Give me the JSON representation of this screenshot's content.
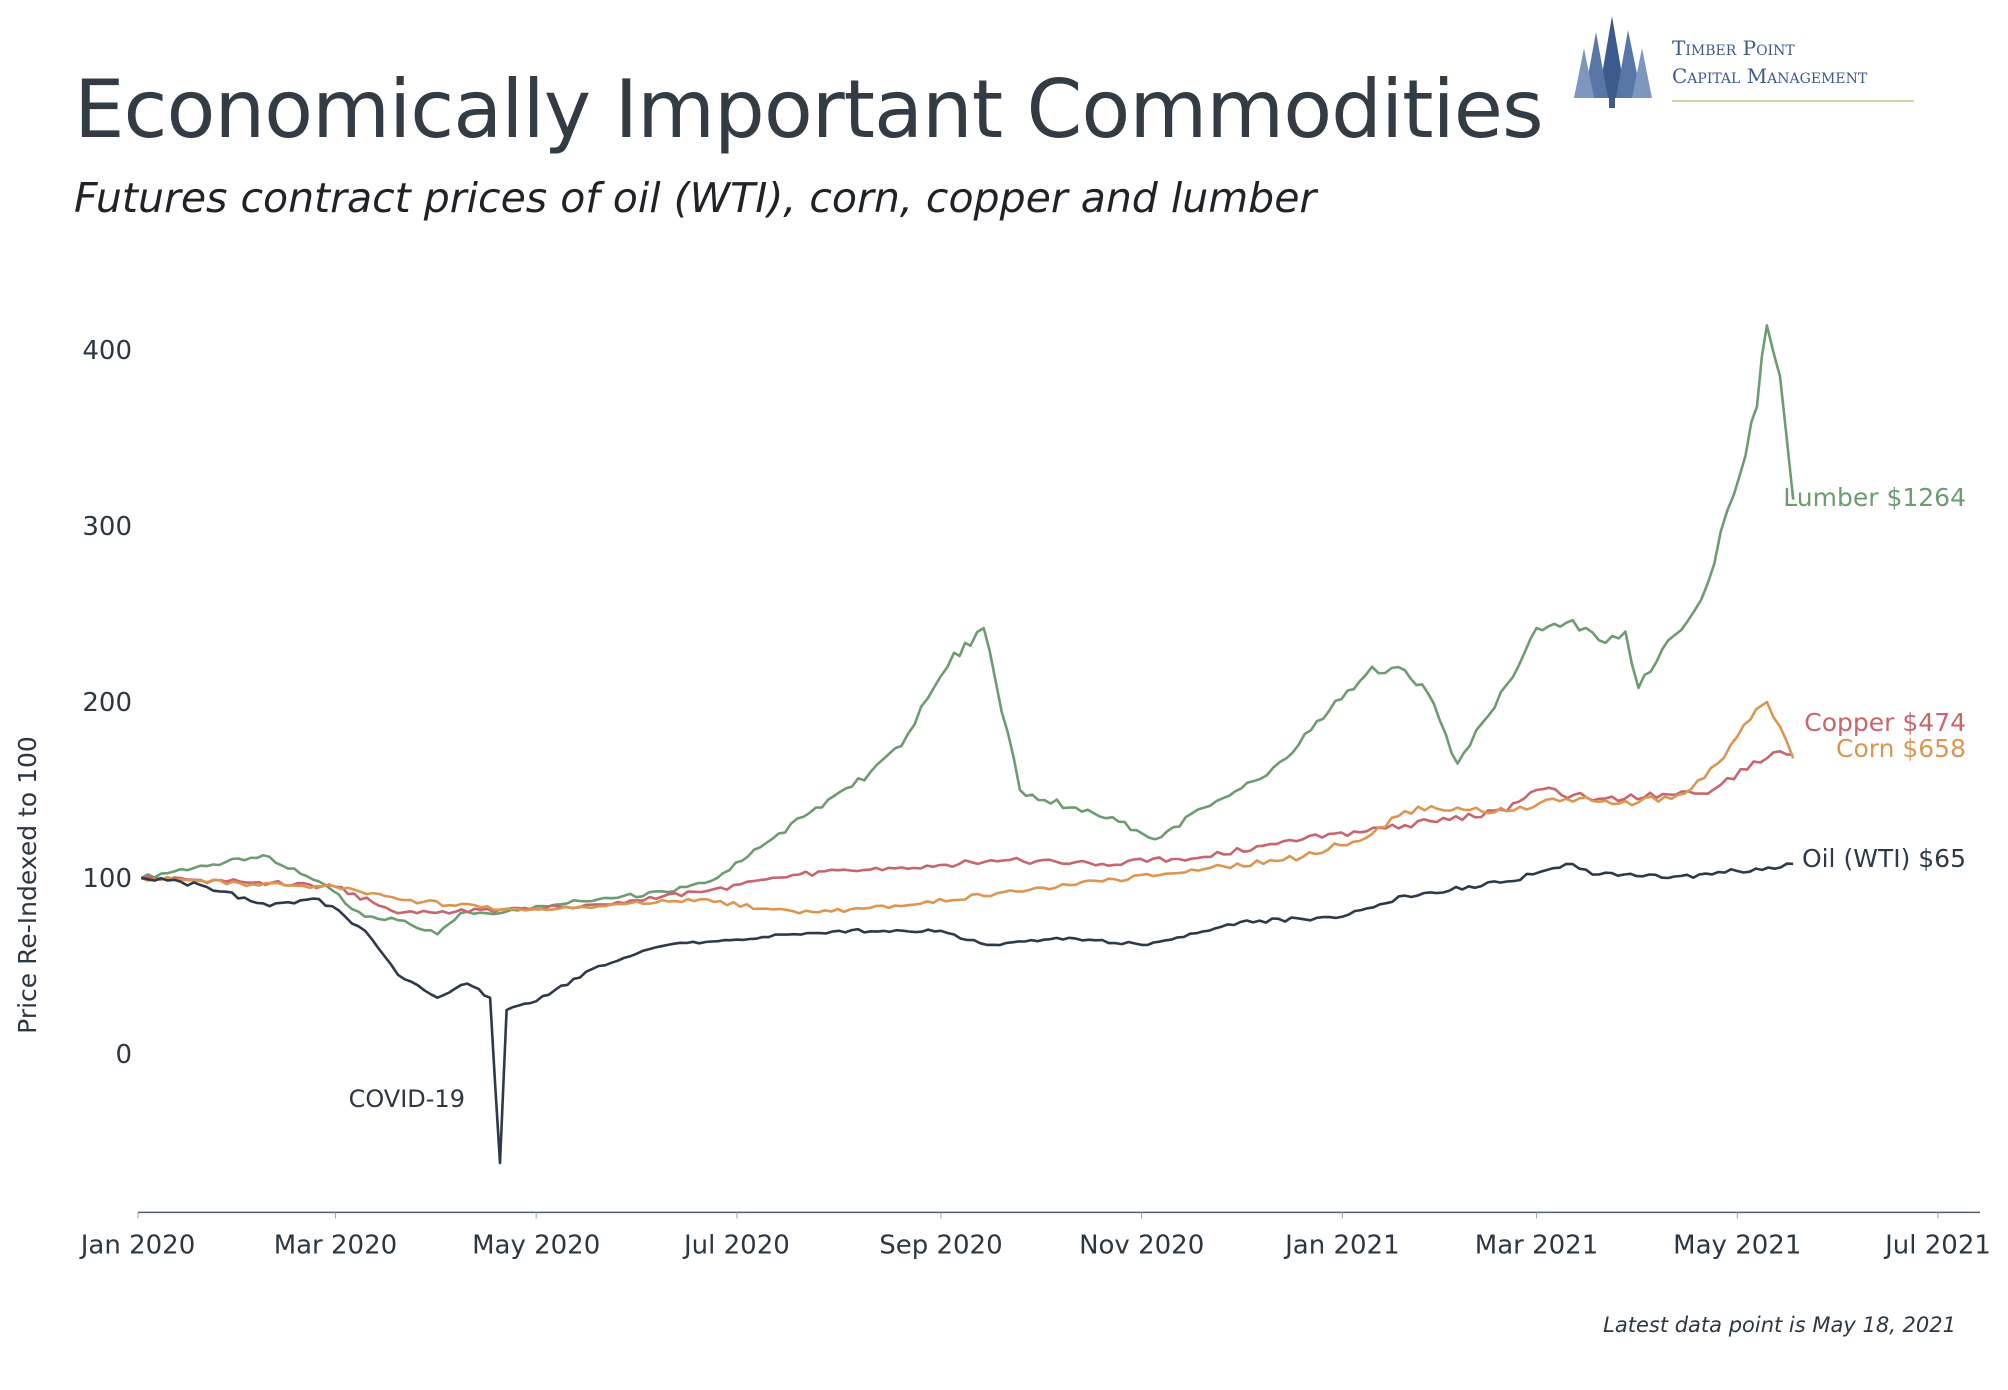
{
  "page": {
    "title": "Economically Important Commodities",
    "subtitle": "Futures contract prices of oil (WTI), corn, copper and lumber",
    "footnote": "Latest data point is May 18, 2021",
    "logo": {
      "line1": "Timber Point",
      "line2": "Capital Management",
      "color": "#3d5a8c"
    }
  },
  "chart_data": {
    "type": "line",
    "xlabel": "",
    "ylabel": "Price Re-Indexed to 100",
    "xlim": [
      "2020-01-01",
      "2021-07-01"
    ],
    "ylim": [
      -90,
      435
    ],
    "xticks": [
      {
        "date": "2020-01-01",
        "label": "Jan 2020"
      },
      {
        "date": "2020-03-01",
        "label": "Mar 2020"
      },
      {
        "date": "2020-05-01",
        "label": "May 2020"
      },
      {
        "date": "2020-07-01",
        "label": "Jul 2020"
      },
      {
        "date": "2020-09-01",
        "label": "Sep 2020"
      },
      {
        "date": "2020-11-01",
        "label": "Nov 2020"
      },
      {
        "date": "2021-01-01",
        "label": "Jan 2021"
      },
      {
        "date": "2021-03-01",
        "label": "Mar 2021"
      },
      {
        "date": "2021-05-01",
        "label": "May 2021"
      },
      {
        "date": "2021-07-01",
        "label": "Jul 2021"
      }
    ],
    "yticks": [
      0,
      100,
      200,
      300,
      400
    ],
    "grid": false,
    "annotations": [
      {
        "text": "COVID-19",
        "date": "2020-04-20",
        "value": -60
      }
    ],
    "series": [
      {
        "name": "Lumber",
        "end_label": "Lumber $1264",
        "color": "#6d9c72",
        "x": [
          "2020-01-02",
          "2020-01-20",
          "2020-02-10",
          "2020-02-25",
          "2020-03-10",
          "2020-03-20",
          "2020-04-01",
          "2020-04-08",
          "2020-04-20",
          "2020-05-01",
          "2020-05-20",
          "2020-06-10",
          "2020-06-25",
          "2020-07-10",
          "2020-07-25",
          "2020-08-05",
          "2020-08-20",
          "2020-09-05",
          "2020-09-10",
          "2020-09-14",
          "2020-09-25",
          "2020-10-10",
          "2020-10-25",
          "2020-11-05",
          "2020-11-20",
          "2020-12-05",
          "2020-12-15",
          "2020-12-28",
          "2021-01-10",
          "2021-01-20",
          "2021-01-27",
          "2021-02-05",
          "2021-02-20",
          "2021-03-01",
          "2021-03-10",
          "2021-03-20",
          "2021-03-28",
          "2021-04-01",
          "2021-04-10",
          "2021-04-20",
          "2021-04-30",
          "2021-05-07",
          "2021-05-10",
          "2021-05-14",
          "2021-05-18"
        ],
        "values": [
          100,
          107,
          112,
          98,
          78,
          76,
          68,
          80,
          80,
          84,
          88,
          92,
          100,
          120,
          140,
          152,
          175,
          228,
          232,
          242,
          150,
          140,
          132,
          122,
          140,
          155,
          168,
          195,
          220,
          218,
          205,
          165,
          210,
          242,
          245,
          235,
          240,
          208,
          235,
          258,
          318,
          368,
          414,
          385,
          315
        ]
      },
      {
        "name": "Copper",
        "end_label": "Copper $474",
        "color": "#c9656c",
        "x": [
          "2020-01-02",
          "2020-02-01",
          "2020-03-01",
          "2020-03-20",
          "2020-04-20",
          "2020-05-20",
          "2020-06-20",
          "2020-07-20",
          "2020-08-20",
          "2020-09-20",
          "2020-10-20",
          "2020-11-20",
          "2020-12-20",
          "2021-01-20",
          "2021-02-20",
          "2021-03-01",
          "2021-03-20",
          "2021-04-20",
          "2021-05-10",
          "2021-05-14",
          "2021-05-18"
        ],
        "values": [
          100,
          98,
          95,
          80,
          82,
          85,
          92,
          102,
          106,
          110,
          108,
          112,
          122,
          130,
          138,
          150,
          145,
          148,
          168,
          172,
          170
        ]
      },
      {
        "name": "Corn",
        "end_label": "Corn $658",
        "color": "#dc9650",
        "x": [
          "2020-01-02",
          "2020-02-01",
          "2020-03-01",
          "2020-03-20",
          "2020-04-20",
          "2020-05-20",
          "2020-06-20",
          "2020-07-20",
          "2020-08-20",
          "2020-09-20",
          "2020-10-20",
          "2020-11-20",
          "2020-12-20",
          "2021-01-10",
          "2021-01-20",
          "2021-02-05",
          "2021-02-20",
          "2021-03-10",
          "2021-04-01",
          "2021-04-15",
          "2021-04-25",
          "2021-05-05",
          "2021-05-10",
          "2021-05-14",
          "2021-05-18"
        ],
        "values": [
          100,
          97,
          95,
          88,
          82,
          84,
          88,
          80,
          84,
          92,
          98,
          105,
          112,
          125,
          138,
          140,
          138,
          145,
          143,
          148,
          165,
          190,
          200,
          186,
          168
        ]
      },
      {
        "name": "Oil (WTI)",
        "end_label": "Oil (WTI) $65",
        "color": "#2e3a4a",
        "x": [
          "2020-01-02",
          "2020-01-20",
          "2020-02-10",
          "2020-02-25",
          "2020-03-10",
          "2020-03-20",
          "2020-04-01",
          "2020-04-10",
          "2020-04-17",
          "2020-04-20",
          "2020-04-22",
          "2020-05-01",
          "2020-05-20",
          "2020-06-10",
          "2020-07-01",
          "2020-08-01",
          "2020-09-01",
          "2020-09-15",
          "2020-10-10",
          "2020-11-01",
          "2020-11-10",
          "2020-12-01",
          "2021-01-01",
          "2021-01-20",
          "2021-02-20",
          "2021-03-10",
          "2021-03-20",
          "2021-04-10",
          "2021-05-01",
          "2021-05-18"
        ],
        "values": [
          100,
          96,
          84,
          88,
          70,
          45,
          32,
          40,
          32,
          -62,
          25,
          30,
          50,
          62,
          65,
          70,
          70,
          62,
          66,
          62,
          65,
          75,
          78,
          90,
          98,
          108,
          102,
          100,
          104,
          108
        ]
      }
    ]
  }
}
